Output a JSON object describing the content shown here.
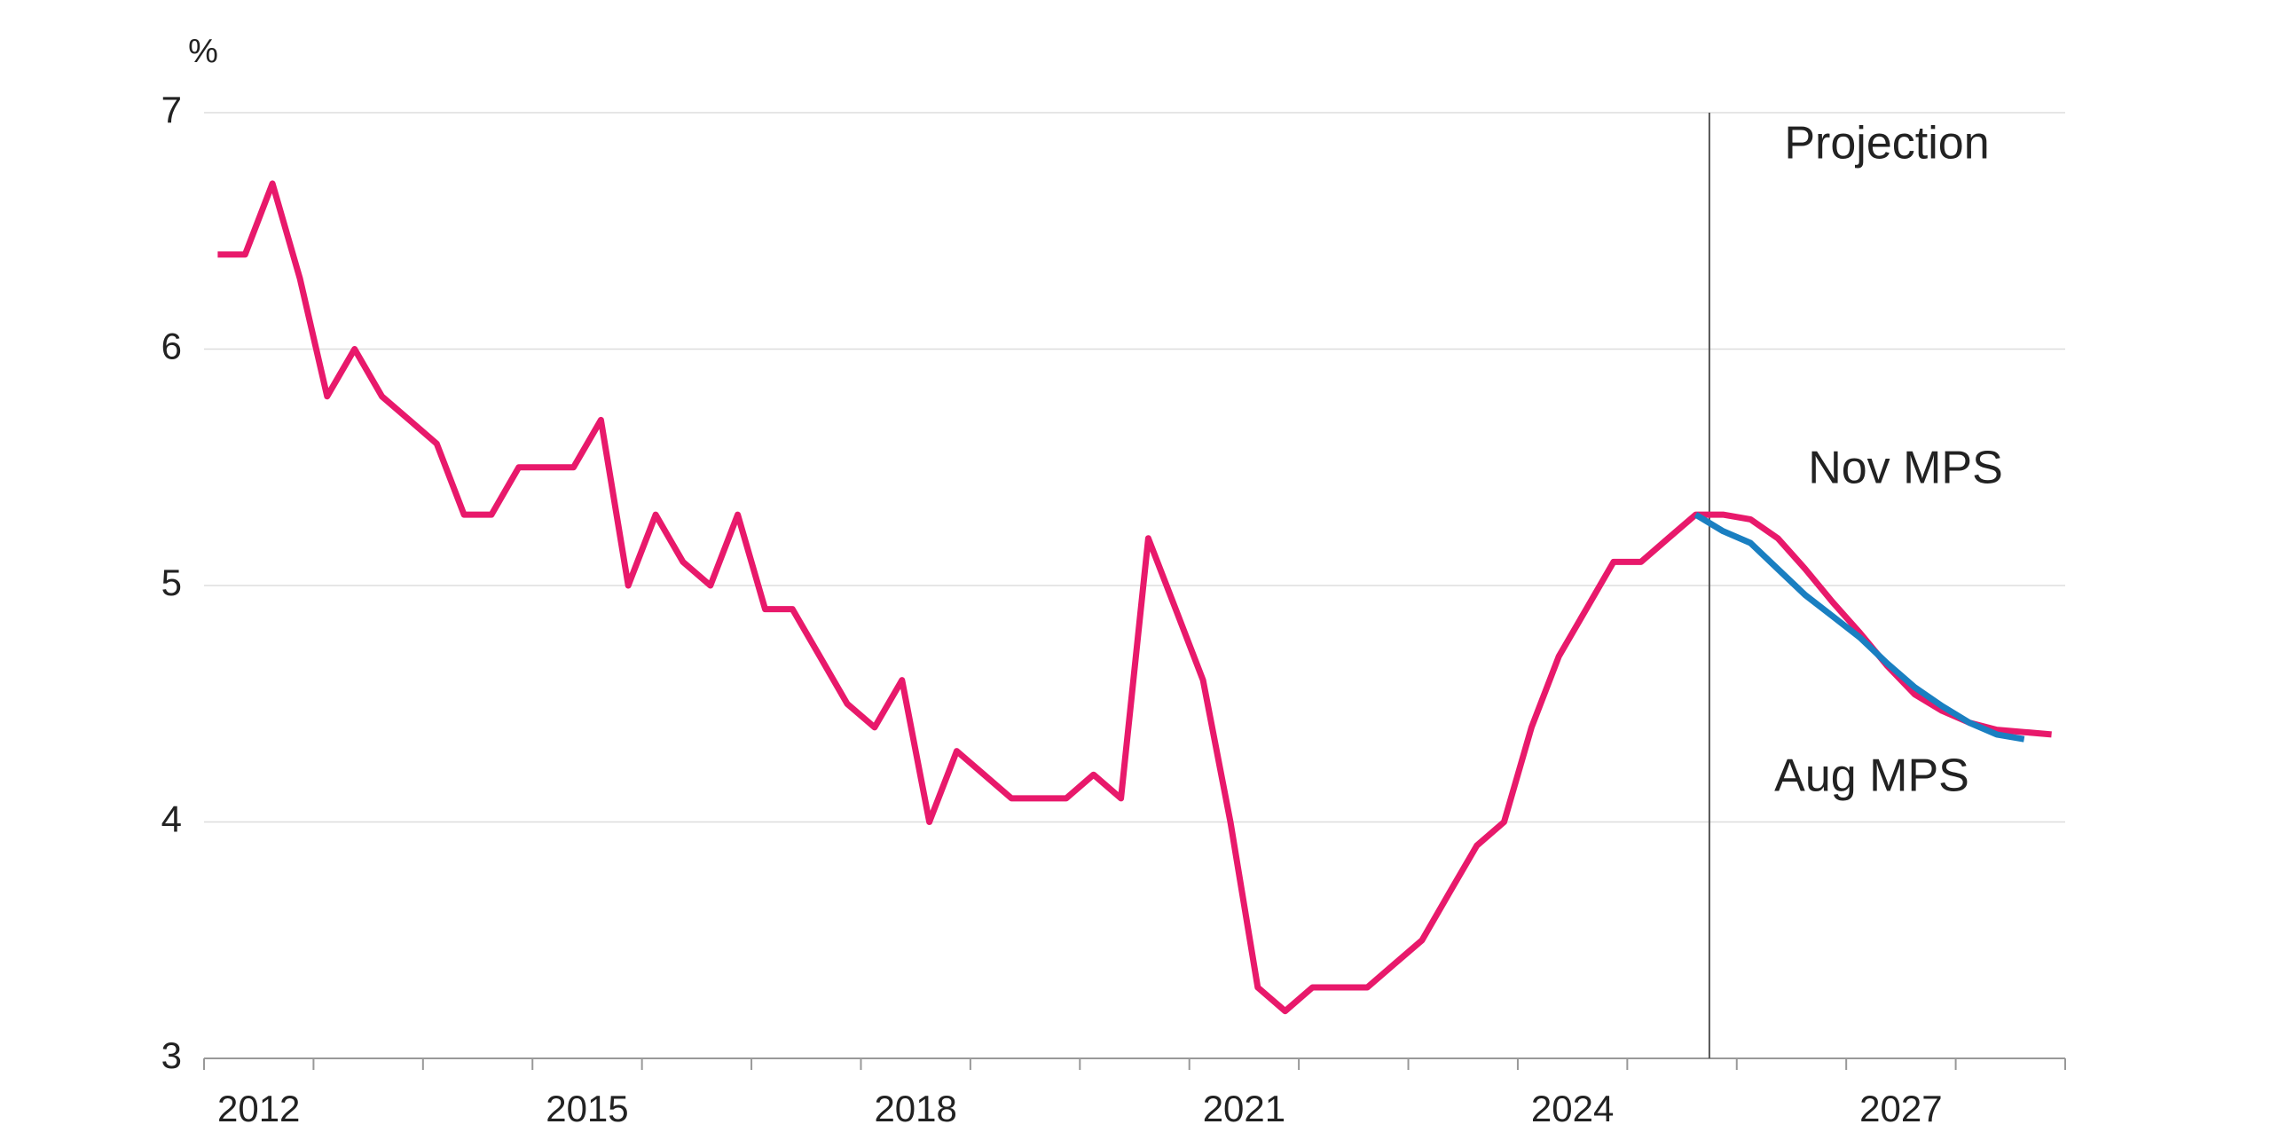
{
  "chart_data": {
    "type": "line",
    "y_unit_label": "%",
    "annotation": "Projection",
    "projection_start": 2025.75,
    "xlim": [
      2012,
      2029
    ],
    "xticks": [
      2012,
      2013,
      2014,
      2015,
      2016,
      2017,
      2018,
      2019,
      2020,
      2021,
      2022,
      2023,
      2024,
      2025,
      2026,
      2027,
      2028,
      2029
    ],
    "xlabels": [
      2012,
      2015,
      2018,
      2021,
      2024,
      2027
    ],
    "ylim": [
      3,
      7
    ],
    "yticks": [
      3,
      4,
      5,
      6,
      7
    ],
    "grid": true,
    "series": [
      {
        "name": "Aug MPS",
        "color": "#1a7fc1",
        "x": [
          2025.625,
          2025.875,
          2026.125,
          2026.375,
          2026.625,
          2026.875,
          2027.125,
          2027.375,
          2027.625,
          2027.875,
          2028.125,
          2028.375,
          2028.625
        ],
        "values": [
          5.3,
          5.23,
          5.18,
          5.07,
          4.96,
          4.87,
          4.78,
          4.67,
          4.57,
          4.49,
          4.42,
          4.37,
          4.35
        ]
      },
      {
        "name": "Nov MPS",
        "color": "#e8196b",
        "x": [
          2012.125,
          2012.375,
          2012.625,
          2012.875,
          2013.125,
          2013.375,
          2013.625,
          2013.875,
          2014.125,
          2014.375,
          2014.625,
          2014.875,
          2015.125,
          2015.375,
          2015.625,
          2015.875,
          2016.125,
          2016.375,
          2016.625,
          2016.875,
          2017.125,
          2017.375,
          2017.625,
          2017.875,
          2018.125,
          2018.375,
          2018.625,
          2018.875,
          2019.125,
          2019.375,
          2019.625,
          2019.875,
          2020.125,
          2020.375,
          2020.625,
          2020.875,
          2021.125,
          2021.375,
          2021.625,
          2021.875,
          2022.125,
          2022.375,
          2022.625,
          2022.875,
          2023.125,
          2023.375,
          2023.625,
          2023.875,
          2024.125,
          2024.375,
          2024.625,
          2024.875,
          2025.125,
          2025.375,
          2025.625,
          2025.875,
          2026.125,
          2026.375,
          2026.625,
          2026.875,
          2027.125,
          2027.375,
          2027.625,
          2027.875,
          2028.125,
          2028.375,
          2028.625,
          2028.875
        ],
        "values": [
          6.4,
          6.4,
          6.7,
          6.3,
          5.8,
          6.0,
          5.8,
          5.7,
          5.6,
          5.3,
          5.3,
          5.5,
          5.5,
          5.5,
          5.7,
          5.0,
          5.3,
          5.1,
          5.0,
          5.3,
          4.9,
          4.9,
          4.7,
          4.5,
          4.4,
          4.6,
          4.0,
          4.3,
          4.2,
          4.1,
          4.1,
          4.1,
          4.2,
          4.1,
          5.2,
          4.9,
          4.6,
          4.0,
          3.3,
          3.2,
          3.3,
          3.3,
          3.3,
          3.4,
          3.5,
          3.7,
          3.9,
          4.0,
          4.4,
          4.7,
          4.9,
          5.1,
          5.1,
          5.2,
          5.3,
          5.3,
          5.28,
          5.2,
          5.07,
          4.93,
          4.8,
          4.66,
          4.54,
          4.47,
          4.42,
          4.39,
          4.38,
          4.37
        ]
      }
    ]
  }
}
